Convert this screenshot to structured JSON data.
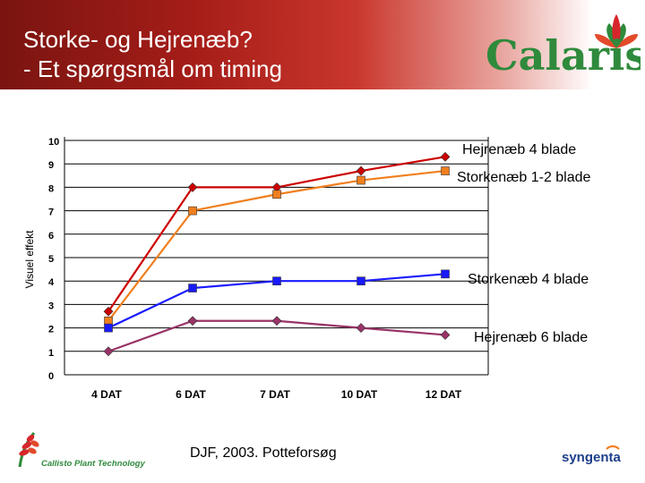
{
  "title_line1": "Storke- og Hejrenæb?",
  "title_line2": "- Et spørgsmål om timing",
  "logos": {
    "brand": "Calaris",
    "left": "Callisto Plant Technology",
    "right": "syngenta"
  },
  "footnote": "DJF, 2003. Potteforsøg",
  "chart_data": {
    "type": "line",
    "ylabel": "Visuel effekt",
    "xlabel": "",
    "categories": [
      "4 DAT",
      "6 DAT",
      "7 DAT",
      "10 DAT",
      "12 DAT"
    ],
    "ylim": [
      0,
      10
    ],
    "yticks": [
      "0",
      "1",
      "2",
      "3",
      "4",
      "5",
      "6",
      "7",
      "8",
      "9",
      "10"
    ],
    "grid": true,
    "series": [
      {
        "name": "Hejrenæb 4 blade",
        "color": "#cc0000",
        "marker": "diamond",
        "values": [
          2.7,
          8.0,
          8.0,
          8.7,
          9.3
        ]
      },
      {
        "name": "Storkenæb 1-2 blade",
        "color": "#f07f1e",
        "marker": "square",
        "values": [
          2.3,
          7.0,
          7.7,
          8.3,
          8.7
        ]
      },
      {
        "name": "Storkenæb 4 blade",
        "color": "#1a1aff",
        "marker": "square",
        "values": [
          2.0,
          3.7,
          4.0,
          4.0,
          4.3
        ]
      },
      {
        "name": "Hejrenæb 6 blade",
        "color": "#993366",
        "marker": "diamond",
        "values": [
          1.0,
          2.3,
          2.3,
          2.0,
          1.7
        ]
      }
    ]
  }
}
